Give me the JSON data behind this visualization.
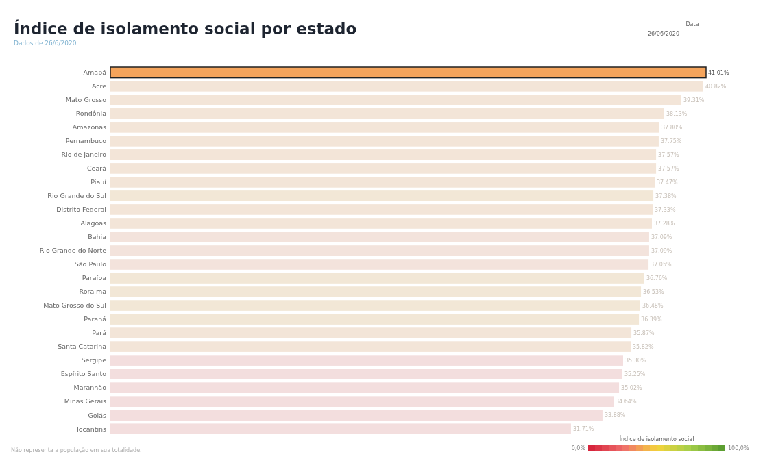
{
  "chart_data": {
    "type": "bar",
    "orientation": "horizontal",
    "title": "Índice de isolamento social por estado",
    "subtitle": "Dados de 26/6/2020",
    "categories": [
      "Amapá",
      "Acre",
      "Mato Grosso",
      "Rondônia",
      "Amazonas",
      "Pernambuco",
      "Rio de Janeiro",
      "Ceará",
      "Piauí",
      "Rio Grande do Sul",
      "Distrito Federal",
      "Alagoas",
      "Bahia",
      "Rio Grande do Norte",
      "São Paulo",
      "Paraíba",
      "Roraima",
      "Mato Grosso do Sul",
      "Paraná",
      "Pará",
      "Santa Catarina",
      "Sergipe",
      "Espírito Santo",
      "Maranhão",
      "Minas Gerais",
      "Goiás",
      "Tocantins"
    ],
    "values": [
      41.01,
      40.82,
      39.31,
      38.13,
      37.8,
      37.75,
      37.57,
      37.57,
      37.47,
      37.38,
      37.33,
      37.28,
      37.09,
      37.09,
      37.05,
      36.76,
      36.53,
      36.48,
      36.39,
      35.87,
      35.82,
      35.3,
      35.25,
      35.02,
      34.64,
      33.88,
      31.71
    ],
    "value_labels": [
      "41.01%",
      "40.82%",
      "39.31%",
      "38.13%",
      "37.80%",
      "37.75%",
      "37.57%",
      "37.57%",
      "37.47%",
      "37.38%",
      "37.33%",
      "37.28%",
      "37.09%",
      "37.09%",
      "37.05%",
      "36.76%",
      "36.53%",
      "36.48%",
      "36.39%",
      "35.87%",
      "35.82%",
      "35.30%",
      "35.25%",
      "35.02%",
      "34.64%",
      "33.88%",
      "31.71%"
    ],
    "colors": [
      "#f4a45c",
      "#f3e5d8",
      "#f3e5d8",
      "#f3e5d8",
      "#f3e5d8",
      "#f3e5d8",
      "#f3e5d8",
      "#f3e5d8",
      "#f3e5d8",
      "#f2e7d6",
      "#f3e5d8",
      "#f3e5d8",
      "#f3e3dc",
      "#f3e3dc",
      "#f3e3dc",
      "#f2e7d6",
      "#f2e7d6",
      "#f2e7d6",
      "#f2e7d6",
      "#f3e5d8",
      "#f3e5d8",
      "#f3dede",
      "#f3dede",
      "#f3dede",
      "#f3dede",
      "#f3dede",
      "#f3dede"
    ],
    "annotations": [
      "Data",
      "26/06/2020",
      "Não representa a população em sua totalidade.",
      "Índice de isolamento social",
      "0,0%",
      "100,0%"
    ]
  }
}
